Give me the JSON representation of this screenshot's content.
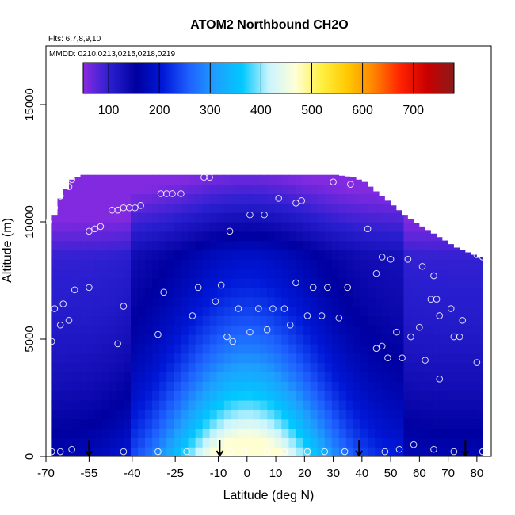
{
  "chart_data": {
    "type": "heatmap",
    "title": "ATOM2 Northbound CH2O",
    "subtitle_flights": "Flts: 6,7,8,9,10",
    "subtitle_dates": "MMDD: 0210,0213,0215,0218,0219",
    "xlabel": "Latitude (deg N)",
    "ylabel": "Altitude (m)",
    "xlim": [
      -70,
      85
    ],
    "ylim": [
      0,
      17500
    ],
    "x_ticks": [
      -70,
      -55,
      -40,
      -25,
      -10,
      0,
      10,
      20,
      30,
      40,
      50,
      60,
      70,
      80
    ],
    "x_tick_labels": [
      "-70",
      "-55",
      "-40",
      "-25",
      "-10",
      "0",
      "10",
      "20",
      "30",
      "40",
      "50",
      "60",
      "70",
      "80"
    ],
    "y_ticks": [
      0,
      5000,
      10000,
      15000
    ],
    "y_tick_labels": [
      "0",
      "5000",
      "10000",
      "15000"
    ],
    "colorbar": {
      "range": [
        50,
        780
      ],
      "ticks": [
        100,
        200,
        300,
        400,
        500,
        600,
        700
      ],
      "tick_labels": [
        "100",
        "200",
        "300",
        "400",
        "500",
        "600",
        "700"
      ],
      "colors": [
        "#8a2be2",
        "#2a1fd0",
        "#0000a0",
        "#0018d8",
        "#1e60ff",
        "#1ea0ff",
        "#00c8ff",
        "#c8f4ff",
        "#ffffd8",
        "#fff040",
        "#ffc800",
        "#ff8000",
        "#ff2000",
        "#c80000",
        "#8b1a1a"
      ]
    },
    "ceiling": [
      [
        -68,
        10300
      ],
      [
        -66,
        11000
      ],
      [
        -64,
        11400
      ],
      [
        -62,
        11800
      ],
      [
        -58,
        12000
      ],
      [
        -50,
        12000
      ],
      [
        -40,
        12000
      ],
      [
        -30,
        12000
      ],
      [
        -20,
        12000
      ],
      [
        -10,
        12000
      ],
      [
        0,
        12000
      ],
      [
        10,
        12000
      ],
      [
        20,
        12000
      ],
      [
        30,
        12000
      ],
      [
        36,
        11900
      ],
      [
        40,
        11700
      ],
      [
        44,
        11300
      ],
      [
        48,
        10900
      ],
      [
        52,
        10500
      ],
      [
        56,
        10100
      ],
      [
        60,
        9800
      ],
      [
        64,
        9500
      ],
      [
        68,
        9200
      ],
      [
        72,
        8900
      ],
      [
        76,
        8700
      ],
      [
        80,
        8500
      ],
      [
        82,
        8300
      ]
    ],
    "observations": [
      [
        -68,
        200
      ],
      [
        -65,
        200
      ],
      [
        -61,
        300
      ],
      [
        -43,
        200
      ],
      [
        -31,
        200
      ],
      [
        -21,
        200
      ],
      [
        -6,
        200
      ],
      [
        -1,
        200
      ],
      [
        7,
        200
      ],
      [
        13,
        200
      ],
      [
        21,
        200
      ],
      [
        27,
        200
      ],
      [
        34,
        200
      ],
      [
        48,
        200
      ],
      [
        53,
        300
      ],
      [
        58,
        500
      ],
      [
        65,
        300
      ],
      [
        72,
        200
      ],
      [
        82,
        200
      ],
      [
        -68,
        4900
      ],
      [
        -67,
        6300
      ],
      [
        -65,
        5600
      ],
      [
        -64,
        6500
      ],
      [
        -62,
        5800
      ],
      [
        -60,
        7100
      ],
      [
        -55,
        7200
      ],
      [
        -45,
        4800
      ],
      [
        -43,
        6400
      ],
      [
        -31,
        5200
      ],
      [
        -29,
        7000
      ],
      [
        -19,
        6000
      ],
      [
        -17,
        7200
      ],
      [
        -11,
        6600
      ],
      [
        -9,
        7300
      ],
      [
        -7,
        5100
      ],
      [
        -5,
        4900
      ],
      [
        -3,
        6300
      ],
      [
        1,
        5300
      ],
      [
        4,
        6300
      ],
      [
        7,
        5400
      ],
      [
        9,
        6300
      ],
      [
        13,
        6300
      ],
      [
        15,
        5600
      ],
      [
        17,
        7400
      ],
      [
        21,
        6000
      ],
      [
        23,
        7200
      ],
      [
        26,
        6000
      ],
      [
        28,
        7200
      ],
      [
        32,
        5900
      ],
      [
        35,
        7200
      ],
      [
        45,
        4600
      ],
      [
        47,
        4700
      ],
      [
        49,
        4200
      ],
      [
        52,
        5300
      ],
      [
        54,
        4200
      ],
      [
        57,
        5100
      ],
      [
        60,
        5500
      ],
      [
        62,
        4100
      ],
      [
        64,
        6700
      ],
      [
        66,
        6700
      ],
      [
        67,
        6000
      ],
      [
        67,
        3300
      ],
      [
        71,
        6300
      ],
      [
        72,
        5100
      ],
      [
        74,
        5100
      ],
      [
        75,
        5800
      ],
      [
        80,
        4000
      ],
      [
        -69,
        10000
      ],
      [
        -67,
        10600
      ],
      [
        -65,
        11100
      ],
      [
        -62,
        11500
      ],
      [
        -61,
        11800
      ],
      [
        -55,
        9600
      ],
      [
        -53,
        9700
      ],
      [
        -51,
        9800
      ],
      [
        -47,
        10500
      ],
      [
        -45,
        10500
      ],
      [
        -43,
        10600
      ],
      [
        -41,
        10600
      ],
      [
        -39,
        10600
      ],
      [
        -37,
        10700
      ],
      [
        -30,
        11200
      ],
      [
        -28,
        11200
      ],
      [
        -26,
        11200
      ],
      [
        -23,
        11200
      ],
      [
        -15,
        11900
      ],
      [
        -13,
        11900
      ],
      [
        -6,
        9600
      ],
      [
        1,
        10300
      ],
      [
        6,
        10300
      ],
      [
        11,
        11000
      ],
      [
        17,
        10800
      ],
      [
        19,
        10900
      ],
      [
        30,
        11700
      ],
      [
        36,
        11600
      ],
      [
        42,
        9700
      ],
      [
        45,
        7800
      ],
      [
        47,
        8500
      ],
      [
        50,
        8400
      ],
      [
        56,
        8400
      ],
      [
        61,
        8100
      ],
      [
        65,
        7700
      ],
      [
        71,
        9300
      ],
      [
        78,
        9400
      ],
      [
        80,
        8600
      ],
      [
        82,
        8500
      ]
    ]
  }
}
